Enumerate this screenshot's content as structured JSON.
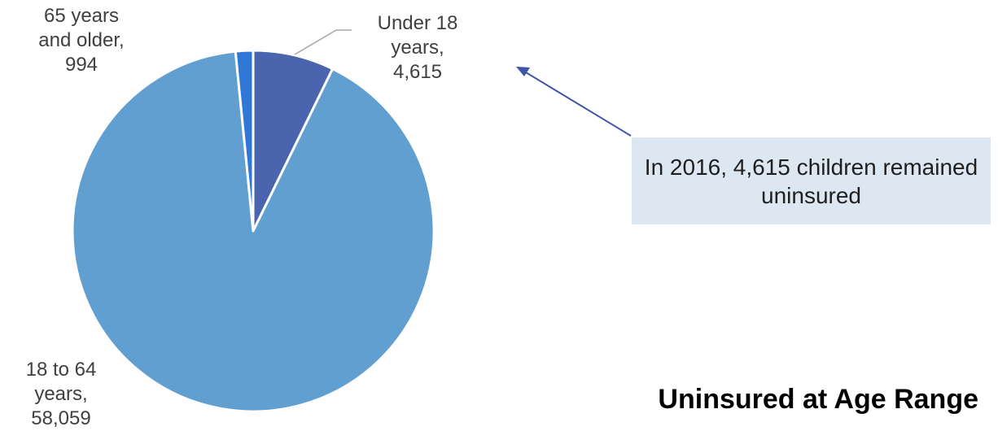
{
  "chart_data": {
    "type": "pie",
    "title": "Uninsured at Age Range",
    "categories": [
      "Under 18 years",
      "18 to 64 years",
      "65 years and older"
    ],
    "values": [
      4615,
      58059,
      994
    ],
    "colors": [
      "#4a64ad",
      "#629fd1",
      "#2f78d6"
    ],
    "data_labels": [
      {
        "lines": [
          "Under 18",
          "years,",
          "4,615"
        ]
      },
      {
        "lines": [
          "18 to 64",
          "years,",
          "58,059"
        ]
      },
      {
        "lines": [
          "65 years",
          "and older,",
          "994"
        ]
      }
    ],
    "start_angle": "12 o'clock, clockwise",
    "legend": "none"
  },
  "annotation": {
    "text": "In 2016, 4,615 children remained uninsured",
    "box_color": "#dde7f2",
    "arrow_color": "#3f56a6"
  }
}
